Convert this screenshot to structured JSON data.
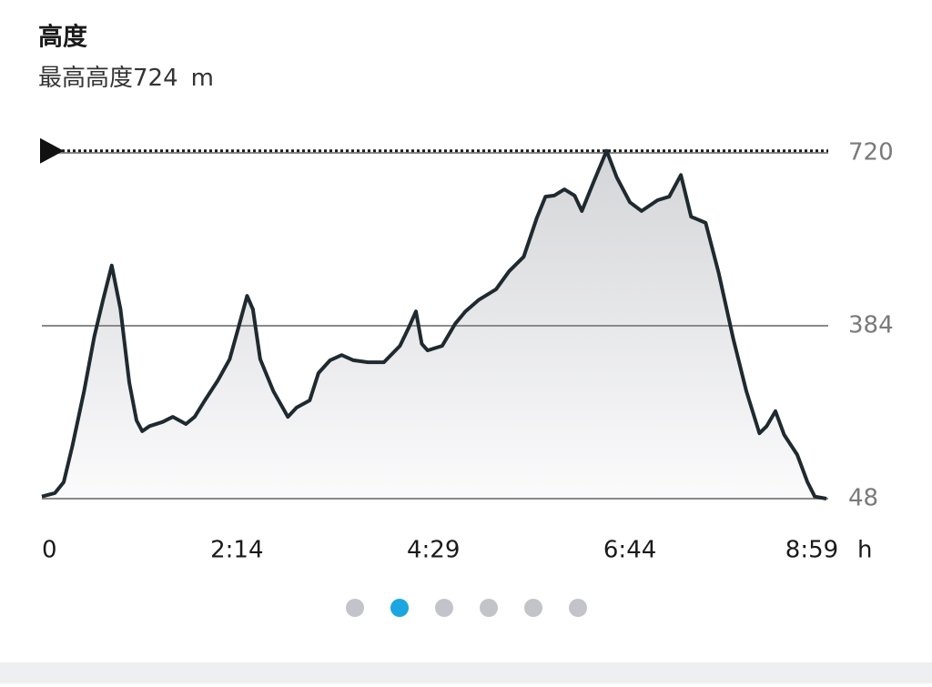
{
  "chart_data": {
    "type": "area",
    "title": "高度",
    "subtitle": "最高高度",
    "max_elevation": 724,
    "unit": "m",
    "x_unit": "h",
    "x": [
      0,
      9,
      15,
      21,
      29,
      36,
      42,
      48,
      54,
      60,
      65,
      69,
      74,
      83,
      90,
      99,
      105,
      112,
      121,
      129,
      135,
      141,
      145,
      150,
      159,
      169,
      175,
      184,
      190,
      198,
      206,
      214,
      224,
      235,
      246,
      252,
      257,
      261,
      265,
      275,
      284,
      291,
      300,
      312,
      321,
      331,
      340,
      346,
      352,
      359,
      366,
      371,
      379,
      388,
      395,
      404,
      412,
      423,
      431,
      439,
      446,
      456,
      465,
      475,
      484,
      493,
      498,
      504,
      510,
      519,
      526,
      531,
      539
    ],
    "y": [
      52,
      59,
      80,
      151,
      257,
      363,
      434,
      501,
      416,
      274,
      200,
      179,
      189,
      197,
      207,
      193,
      207,
      239,
      278,
      319,
      380,
      442,
      416,
      319,
      257,
      207,
      225,
      239,
      292,
      317,
      327,
      317,
      313,
      313,
      345,
      380,
      412,
      349,
      336,
      345,
      388,
      412,
      434,
      455,
      490,
      518,
      593,
      635,
      637,
      649,
      637,
      607,
      663,
      724,
      672,
      624,
      607,
      628,
      635,
      677,
      596,
      584,
      486,
      359,
      257,
      175,
      189,
      218,
      172,
      133,
      80,
      52,
      48
    ],
    "color": "#1f2a30",
    "xlim": [
      0,
      539
    ],
    "xticks": [
      0,
      {
        "value": 134,
        "label": "2:14"
      },
      {
        "value": 269,
        "label": "4:29"
      },
      {
        "value": 404,
        "label": "6:44"
      },
      {
        "value": 539,
        "label": "8:59"
      }
    ],
    "ylim": [
      48,
      720
    ],
    "yticks": [
      48,
      384,
      720
    ],
    "grid": true
  }
}
